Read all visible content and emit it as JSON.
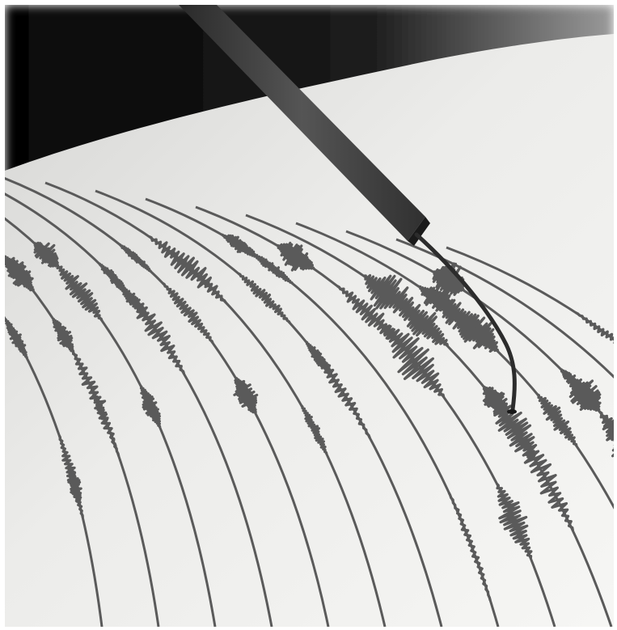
{
  "image": {
    "kind": "photograph",
    "tone": "grayscale",
    "colors": {
      "paper": "#e9e9e7",
      "ink": "#5a5a5a",
      "dark_background": "#0f0f0f",
      "stylus": "#3f3f3f",
      "frame": "#ffffff"
    }
  }
}
